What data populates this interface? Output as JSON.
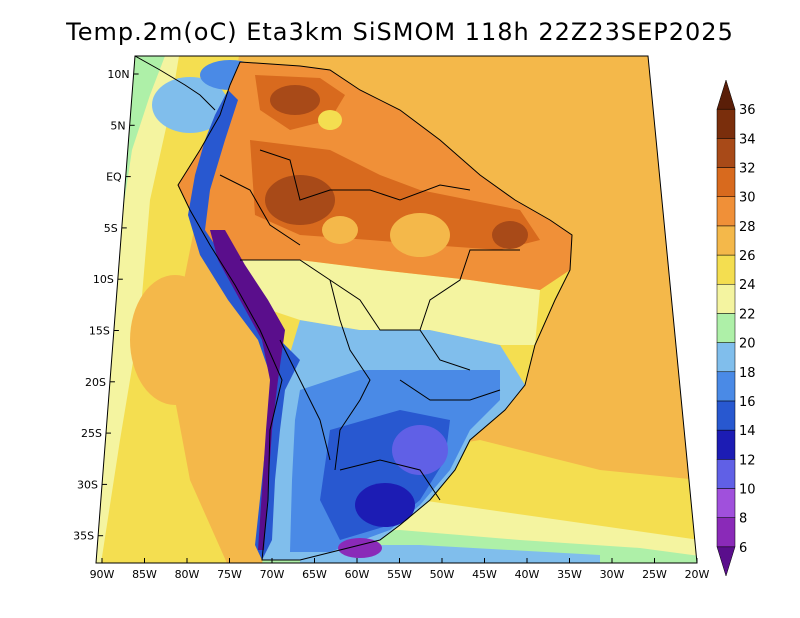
{
  "title": "Temp.2m(oC) Eta3km SiSMOM 118h 22Z23SEP2025",
  "map": {
    "variable": "2 m air temperature",
    "unit": "oC",
    "region": "South America",
    "lat_ticks": [
      "10N",
      "5N",
      "EQ",
      "5S",
      "10S",
      "15S",
      "20S",
      "25S",
      "30S",
      "35S"
    ],
    "lon_ticks": [
      "90W",
      "85W",
      "80W",
      "75W",
      "70W",
      "65W",
      "60W",
      "55W",
      "50W",
      "45W",
      "40W",
      "35W",
      "30W",
      "25W",
      "20W"
    ]
  },
  "colorbar": {
    "labels": [
      "6",
      "8",
      "10",
      "12",
      "14",
      "16",
      "18",
      "20",
      "22",
      "24",
      "26",
      "28",
      "30",
      "32",
      "34",
      "36"
    ],
    "colors": [
      "#5a0e8c",
      "#8a2ab8",
      "#a050dc",
      "#6060e6",
      "#1c1cb4",
      "#2858d0",
      "#4a8ae6",
      "#80beec",
      "#aef0a8",
      "#f4f4a0",
      "#f4de50",
      "#f4b84a",
      "#f09038",
      "#d86a1e",
      "#a84a18",
      "#7a2e0c",
      "#5a1e08"
    ]
  }
}
